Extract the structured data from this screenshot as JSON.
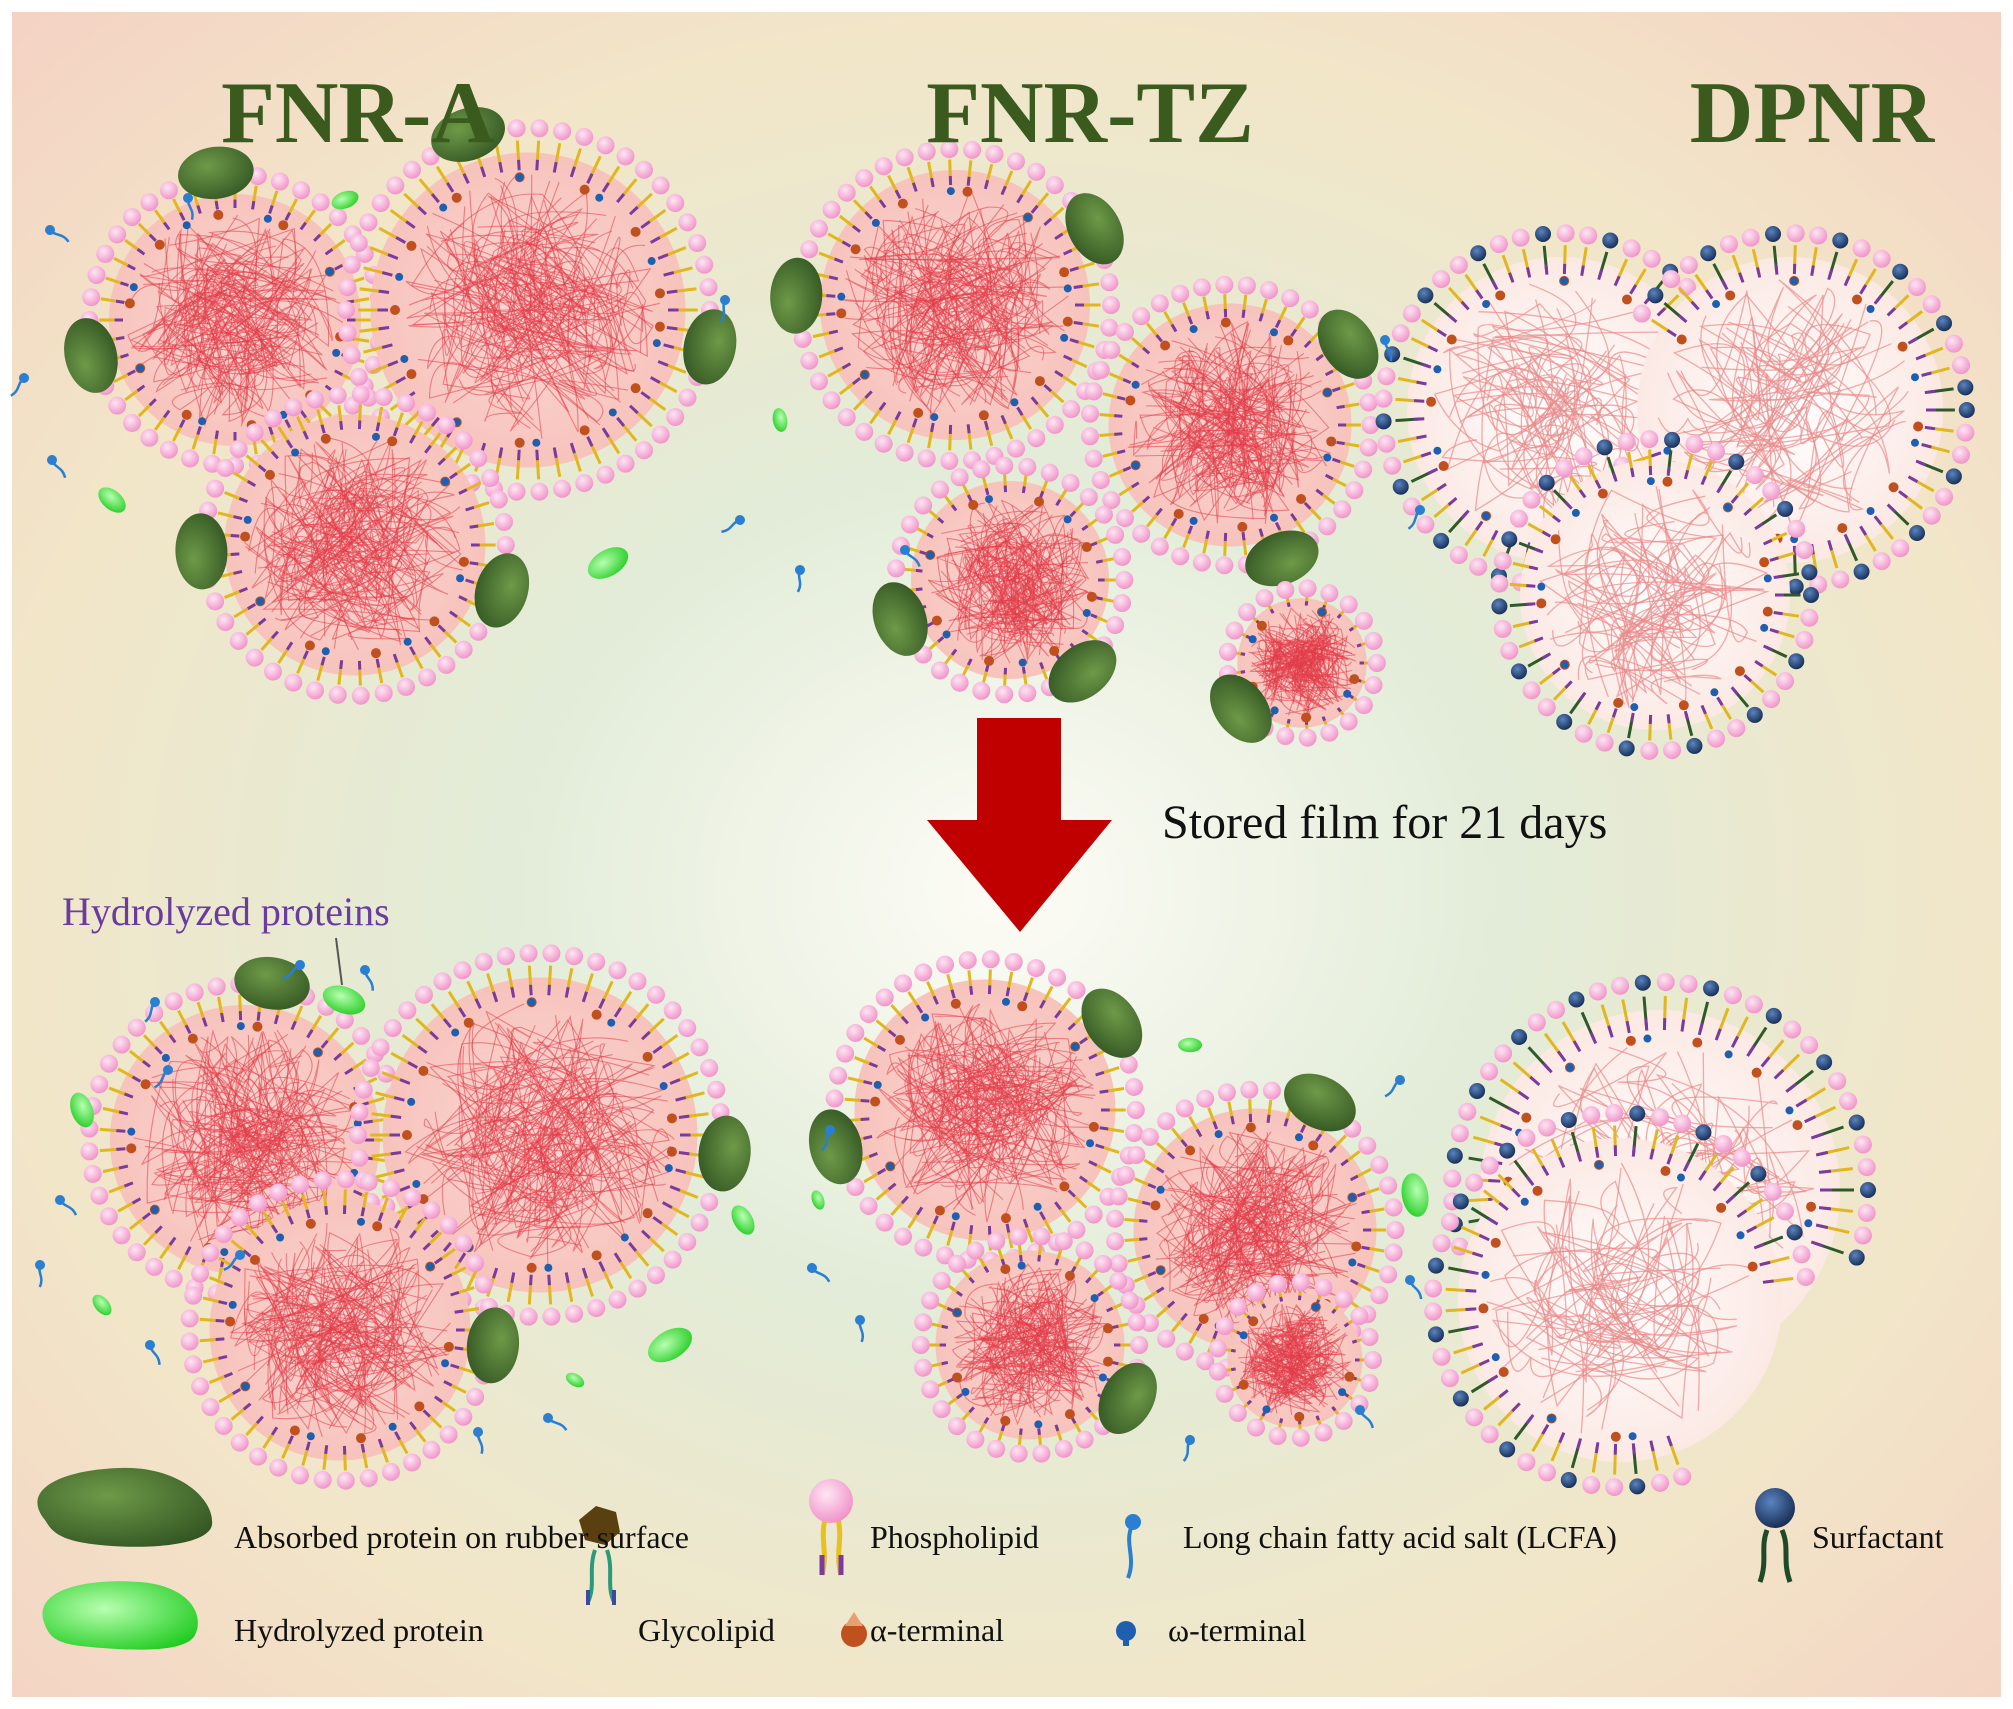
{
  "titles": {
    "fnr_a": "FNR-A",
    "fnr_tz": "FNR-TZ",
    "dpnr": "DPNR"
  },
  "arrow_label": "Stored film for 21 days",
  "callout": "Hydrolyzed proteins",
  "legend": {
    "absorbed_protein": "Absorbed protein on rubber surface",
    "phospholipid": "Phospholipid",
    "lcfa": "Long chain fatty acid salt (LCFA)",
    "surfactant": "Surfactant",
    "hydrolyzed_protein": "Hydrolyzed protein",
    "glycolipid": "Glycolipid",
    "alpha_terminal": "α-terminal",
    "omega_terminal": "ω-terminal"
  },
  "colors": {
    "title": "#3a5a1e",
    "arrow": "#c00000",
    "protein": "#3b6a2c",
    "hydrolyzed": "#33dd33",
    "phospholipid_head": "#f6a9d5",
    "rubber": "#e8505a",
    "surfactant": "#1f3c6e",
    "lcfa": "#2a7fd0",
    "callout": "#6a3ca0"
  }
}
